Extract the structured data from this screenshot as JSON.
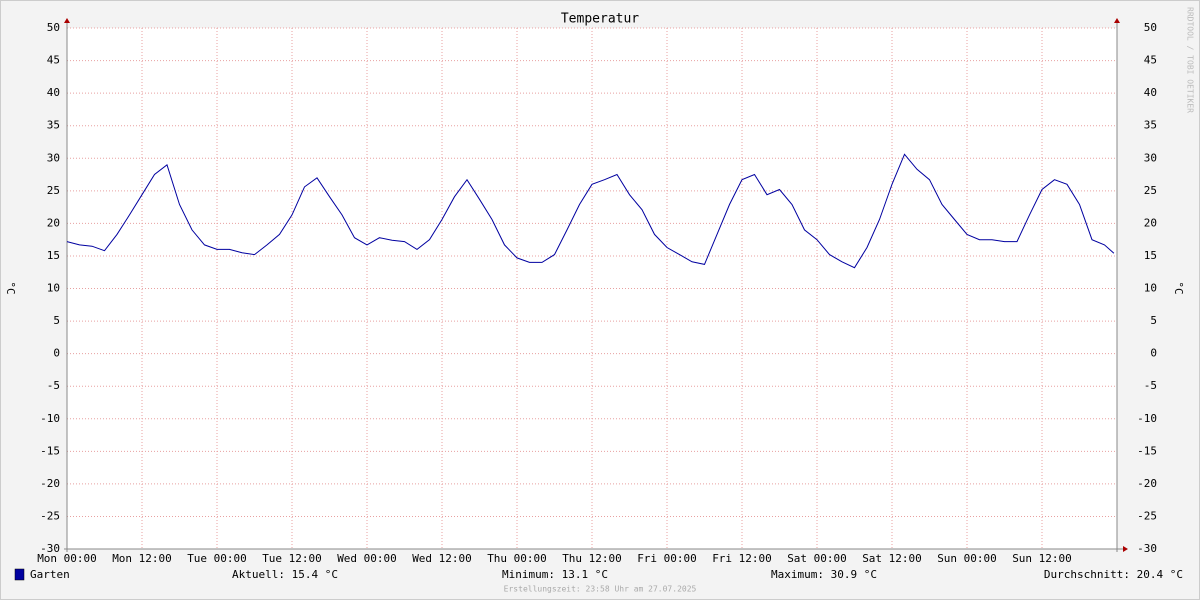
{
  "chart_data": {
    "type": "line",
    "title": "Temperatur",
    "ylabel": "°C",
    "y2label": "°C",
    "watermark": "RRDTOOL / TOBI OETIKER",
    "footer": "Erstellungszeit: 23:58 Uhr am 27.07.2025",
    "xlim": [
      0,
      168
    ],
    "xticks": [
      {
        "value": 0,
        "label": "Mon 00:00"
      },
      {
        "value": 12,
        "label": "Mon 12:00"
      },
      {
        "value": 24,
        "label": "Tue 00:00"
      },
      {
        "value": 36,
        "label": "Tue 12:00"
      },
      {
        "value": 48,
        "label": "Wed 00:00"
      },
      {
        "value": 60,
        "label": "Wed 12:00"
      },
      {
        "value": 72,
        "label": "Thu 00:00"
      },
      {
        "value": 84,
        "label": "Thu 12:00"
      },
      {
        "value": 96,
        "label": "Fri 00:00"
      },
      {
        "value": 108,
        "label": "Fri 12:00"
      },
      {
        "value": 120,
        "label": "Sat 00:00"
      },
      {
        "value": 132,
        "label": "Sat 12:00"
      },
      {
        "value": 144,
        "label": "Sun 00:00"
      },
      {
        "value": 156,
        "label": "Sun 12:00"
      }
    ],
    "ylim": [
      -30,
      50
    ],
    "yticks": [
      -30,
      -25,
      -20,
      -15,
      -10,
      -5,
      0,
      5,
      10,
      15,
      20,
      25,
      30,
      35,
      40,
      45,
      50
    ],
    "grid": true,
    "x": [
      0,
      2,
      4,
      6,
      8,
      10,
      12,
      14,
      16,
      18,
      20,
      22,
      24,
      26,
      28,
      30,
      32,
      34,
      36,
      38,
      40,
      42,
      44,
      46,
      48,
      50,
      52,
      54,
      56,
      58,
      60,
      62,
      64,
      66,
      68,
      70,
      72,
      74,
      76,
      78,
      80,
      82,
      84,
      86,
      88,
      90,
      92,
      94,
      96,
      98,
      100,
      102,
      104,
      106,
      108,
      110,
      112,
      114,
      116,
      118,
      120,
      122,
      124,
      126,
      128,
      130,
      132,
      134,
      136,
      138,
      140,
      142,
      144,
      146,
      148,
      150,
      152,
      154,
      156,
      158,
      160,
      162,
      164,
      166,
      167.5
    ],
    "series": [
      {
        "name": "Garten",
        "color": "#0000a0",
        "values": [
          17.2,
          16.7,
          16.5,
          15.8,
          18.3,
          21.3,
          24.4,
          27.5,
          29,
          22.9,
          19,
          16.7,
          16,
          16,
          15.5,
          15.2,
          16.7,
          18.3,
          21.3,
          25.6,
          27,
          24.1,
          21.3,
          17.8,
          16.7,
          17.8,
          17.4,
          17.2,
          16,
          17.5,
          20.6,
          24.1,
          26.7,
          23.7,
          20.6,
          16.7,
          14.7,
          14,
          14,
          15.2,
          19,
          22.9,
          26,
          26.7,
          27.5,
          24.4,
          22.1,
          18.3,
          16.3,
          15.2,
          14.1,
          13.7,
          18.3,
          22.9,
          26.7,
          27.5,
          24.4,
          25.2,
          22.9,
          19,
          17.5,
          15.2,
          14.1,
          13.2,
          16.3,
          20.6,
          26,
          30.6,
          28.3,
          26.7,
          22.9,
          20.6,
          18.3,
          17.5,
          17.5,
          17.2,
          17.2,
          21.3,
          25.2,
          26.7,
          26,
          22.9,
          17.5,
          16.7,
          15.4
        ]
      }
    ],
    "legend_stats": [
      "Aktuell: 15.4 °C",
      "Minimum: 13.1 °C",
      "Maximum: 30.9 °C",
      "Durchschnitt: 20.4 °C"
    ]
  }
}
